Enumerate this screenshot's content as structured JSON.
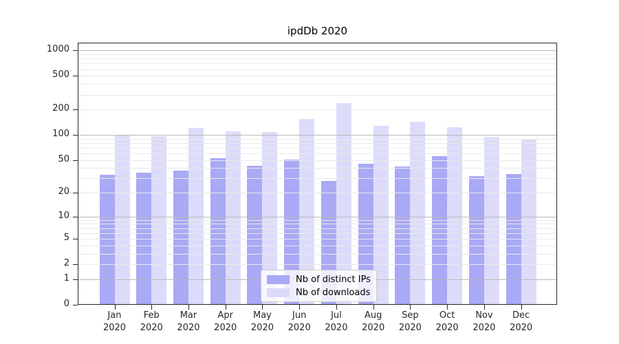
{
  "chart_data": {
    "type": "bar",
    "title": "ipdDb 2020",
    "categories": [
      "Jan",
      "Feb",
      "Mar",
      "Apr",
      "May",
      "Jun",
      "Jul",
      "Aug",
      "Sep",
      "Oct",
      "Nov",
      "Dec"
    ],
    "year_label": "2020",
    "series": [
      {
        "name": "Nb of distinct IPs",
        "color": "#a9a9f5",
        "values": [
          33,
          35,
          37,
          53,
          43,
          51,
          28,
          45,
          42,
          56,
          32,
          34
        ]
      },
      {
        "name": "Nb of downloads",
        "color": "#dcdcfa",
        "values": [
          98,
          96,
          120,
          111,
          109,
          154,
          240,
          127,
          142,
          124,
          95,
          89
        ]
      }
    ],
    "yscale": "symlog",
    "yticks": [
      0,
      1,
      2,
      5,
      10,
      20,
      50,
      100,
      200,
      500,
      1000
    ],
    "ylim": [
      0,
      1240
    ],
    "xlabel": "",
    "ylabel": "",
    "grid": "horizontal major and minor gridlines drawn above bars",
    "legend_position": "lower center",
    "colors": {
      "grid_major": "#b9b9b9",
      "grid_minor": "#e9e9e9",
      "axis": "#262626",
      "text": "#262626",
      "legend_border": "#cccccc",
      "legend_background": "rgba(255,255,255,0.8)"
    }
  }
}
